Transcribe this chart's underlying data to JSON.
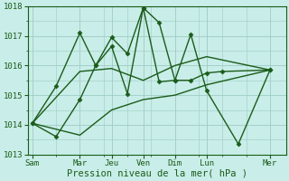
{
  "background_color": "#c9ede8",
  "grid_color": "#9dccc4",
  "line_color": "#1a5c1a",
  "marker": "D",
  "markersize": 2.5,
  "linewidth": 1.0,
  "ylim": [
    1013,
    1018
  ],
  "yticks": [
    1013,
    1014,
    1015,
    1016,
    1017,
    1018
  ],
  "xlabel": "Pression niveau de la mer( hPa )",
  "xlabel_fontsize": 7.5,
  "tick_fontsize": 6.5,
  "xtick_labels": [
    "Sam",
    "Mar",
    "Jeu",
    "Ven",
    "Dim",
    "Lun",
    "Mer"
  ],
  "xtick_positions": [
    0,
    1.5,
    2.5,
    3.5,
    4.5,
    5.5,
    7.5
  ],
  "xlim": [
    -0.15,
    8.0
  ],
  "line1_x": [
    0,
    0.75,
    1.5,
    2.0,
    2.5,
    3.0,
    3.5,
    4.0,
    4.5,
    5.0,
    5.5,
    6.0,
    7.5
  ],
  "line1_y": [
    1014.05,
    1015.3,
    1017.1,
    1016.0,
    1016.95,
    1016.4,
    1017.95,
    1017.45,
    1015.5,
    1015.5,
    1015.75,
    1015.8,
    1015.85
  ],
  "line2_x": [
    0,
    0.75,
    1.5,
    2.0,
    2.5,
    3.0,
    3.5,
    4.0,
    4.5,
    5.0,
    5.5,
    6.5,
    7.5
  ],
  "line2_y": [
    1014.05,
    1013.6,
    1014.85,
    1016.0,
    1016.65,
    1015.05,
    1017.95,
    1015.45,
    1015.5,
    1017.05,
    1015.15,
    1013.35,
    1015.85
  ],
  "line3_x": [
    0,
    1.5,
    2.5,
    3.5,
    4.5,
    5.5,
    7.5
  ],
  "line3_y": [
    1014.05,
    1015.8,
    1015.9,
    1015.5,
    1016.0,
    1016.3,
    1015.85
  ],
  "line4_x": [
    0,
    1.5,
    2.5,
    3.5,
    4.5,
    5.5,
    7.5
  ],
  "line4_y": [
    1014.05,
    1013.65,
    1014.5,
    1014.85,
    1015.0,
    1015.35,
    1015.85
  ]
}
